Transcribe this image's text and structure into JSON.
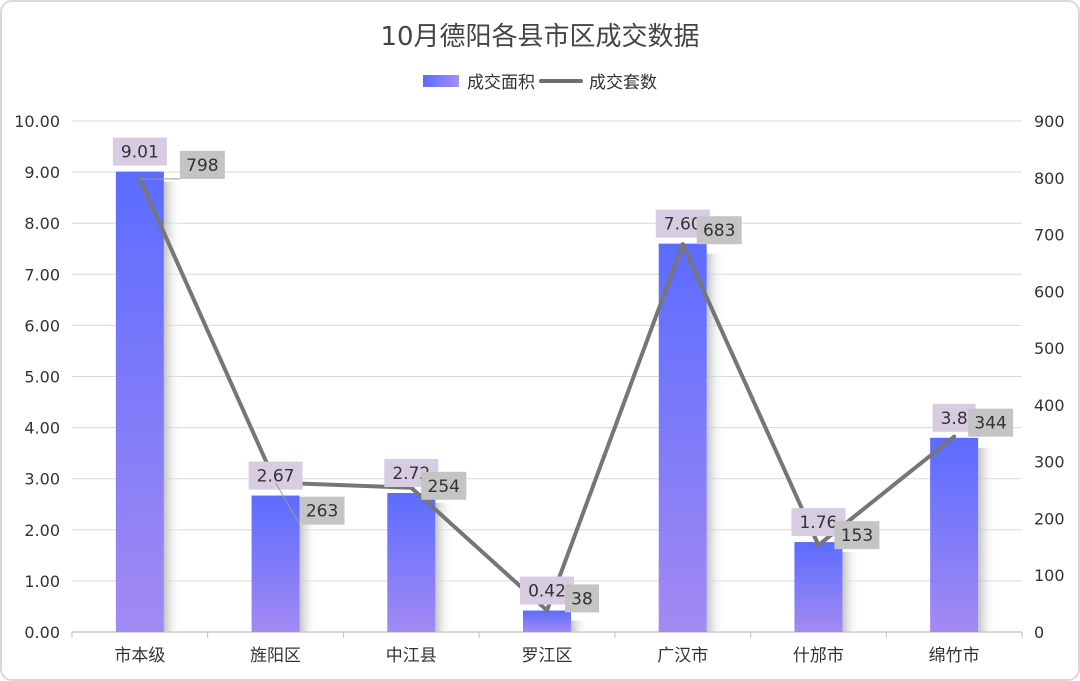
{
  "chart_data": {
    "type": "bar",
    "title": "10月德阳各县市区成交数据",
    "categories": [
      "市本级",
      "旌阳区",
      "中江县",
      "罗江区",
      "广汉市",
      "什邡市",
      "绵竹市"
    ],
    "series": [
      {
        "name": "成交面积",
        "type": "bar",
        "axis": "left",
        "values": [
          9.01,
          2.67,
          2.72,
          0.42,
          7.6,
          1.76,
          3.8
        ],
        "labels": [
          "9.01",
          "2.67",
          "2.72",
          "0.42",
          "7.60",
          "1.76",
          "3.8"
        ],
        "color": "#5b6cff"
      },
      {
        "name": "成交套数",
        "type": "line",
        "axis": "right",
        "values": [
          798,
          263,
          254,
          38,
          683,
          153,
          344
        ],
        "labels": [
          "798",
          "263",
          "254",
          "38",
          "683",
          "153",
          "344"
        ],
        "color": "#767676"
      }
    ],
    "y_left": {
      "min": 0,
      "max": 10,
      "ticks": [
        "0.00",
        "1.00",
        "2.00",
        "3.00",
        "4.00",
        "5.00",
        "6.00",
        "7.00",
        "8.00",
        "9.00",
        "10.00"
      ]
    },
    "y_right": {
      "min": 0,
      "max": 900,
      "ticks": [
        "0",
        "100",
        "200",
        "300",
        "400",
        "500",
        "600",
        "700",
        "800",
        "900"
      ]
    },
    "grid": true,
    "legend": "top-center"
  }
}
